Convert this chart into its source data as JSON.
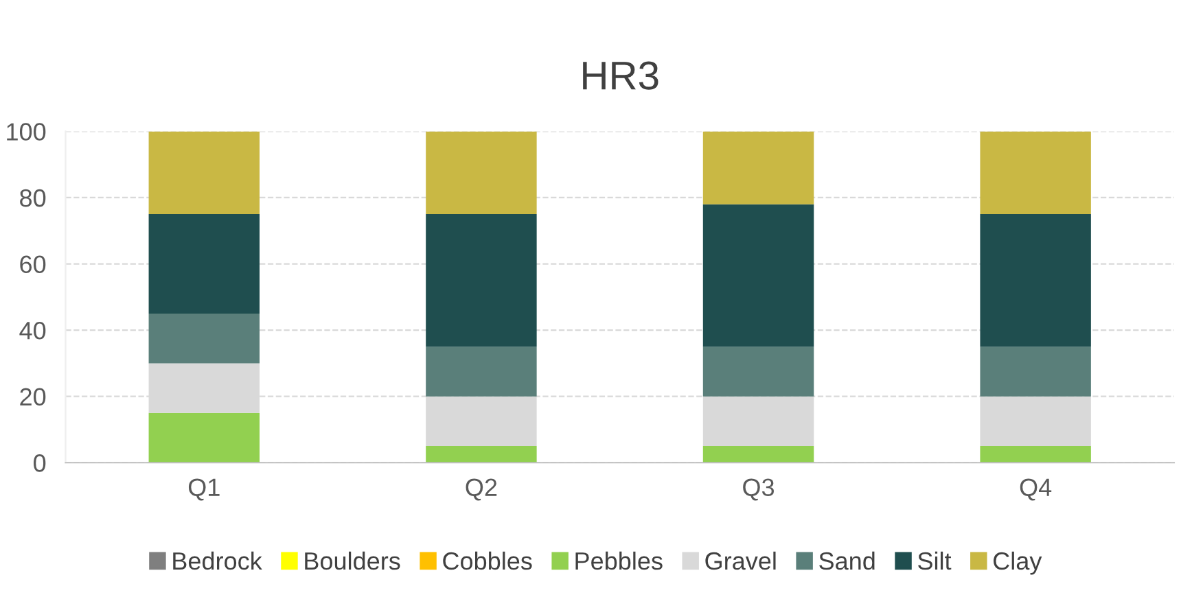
{
  "chart_data": {
    "type": "bar",
    "title": "HR3",
    "stacked": true,
    "categories": [
      "Q1",
      "Q2",
      "Q3",
      "Q4"
    ],
    "series": [
      {
        "name": "Bedrock",
        "color": "#7f7f7f",
        "values": [
          0,
          0,
          0,
          0
        ]
      },
      {
        "name": "Boulders",
        "color": "#ffff00",
        "values": [
          0,
          0,
          0,
          0
        ]
      },
      {
        "name": "Cobbles",
        "color": "#ffc000",
        "values": [
          0,
          0,
          0,
          0
        ]
      },
      {
        "name": "Pebbles",
        "color": "#92d050",
        "values": [
          15,
          5,
          5,
          5
        ]
      },
      {
        "name": "Gravel",
        "color": "#d9d9d9",
        "values": [
          15,
          15,
          15,
          15
        ]
      },
      {
        "name": "Sand",
        "color": "#5a7f7a",
        "values": [
          15,
          15,
          15,
          15
        ]
      },
      {
        "name": "Silt",
        "color": "#1f4e4f",
        "values": [
          30,
          40,
          43,
          40
        ]
      },
      {
        "name": "Clay",
        "color": "#c9b844",
        "values": [
          25,
          25,
          22,
          25
        ]
      }
    ],
    "ylim": [
      0,
      100
    ],
    "yticks": [
      0,
      20,
      40,
      60,
      80,
      100
    ],
    "grid": "y",
    "legend": "bottom"
  }
}
